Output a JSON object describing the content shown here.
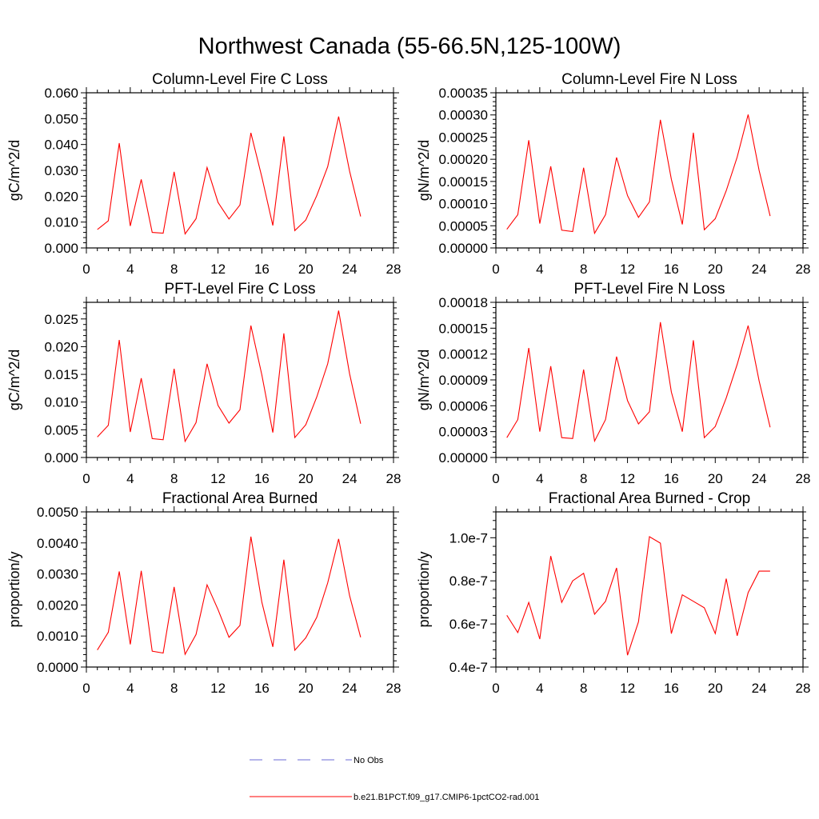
{
  "figure": {
    "title": "Northwest Canada (55-66.5N,125-100W)",
    "series_color": "#ff0000",
    "obs_color": "#6b6bd6"
  },
  "legend": {
    "obs_label": "No Obs",
    "model_label": "b.e21.B1PCT.f09_g17.CMIP6-1pctCO2-rad.001"
  },
  "chart_data": [
    {
      "type": "line",
      "title": "Column-Level Fire C Loss",
      "ylabel": "gC/m^2/d",
      "xlim": [
        0,
        28
      ],
      "xticks": [
        0,
        4,
        8,
        12,
        16,
        20,
        24,
        28
      ],
      "ylim": [
        0,
        0.06
      ],
      "yticks": [
        0,
        0.01,
        0.02,
        0.03,
        0.04,
        0.05,
        0.06
      ],
      "yticklabels": [
        "0.000",
        "0.010",
        "0.020",
        "0.030",
        "0.040",
        "0.050",
        "0.060"
      ],
      "x": [
        1,
        2,
        3,
        4,
        5,
        6,
        7,
        8,
        9,
        10,
        11,
        12,
        13,
        14,
        15,
        16,
        17,
        18,
        19,
        20,
        21,
        22,
        23,
        24,
        25
      ],
      "series": [
        {
          "values": [
            0.0071,
            0.0105,
            0.0405,
            0.0085,
            0.0265,
            0.006,
            0.0057,
            0.0294,
            0.0054,
            0.0113,
            0.0311,
            0.0176,
            0.0112,
            0.0166,
            0.0445,
            0.0274,
            0.0087,
            0.0431,
            0.0067,
            0.0108,
            0.0202,
            0.0314,
            0.0508,
            0.0297,
            0.0122
          ]
        }
      ]
    },
    {
      "type": "line",
      "title": "Column-Level Fire N Loss",
      "ylabel": "gN/m^2/d",
      "xlim": [
        0,
        28
      ],
      "xticks": [
        0,
        4,
        8,
        12,
        16,
        20,
        24,
        28
      ],
      "ylim": [
        0,
        0.00035
      ],
      "yticks": [
        0,
        5e-05,
        0.0001,
        0.00015,
        0.0002,
        0.00025,
        0.0003,
        0.00035
      ],
      "yticklabels": [
        "0.00000",
        "0.00005",
        "0.00010",
        "0.00015",
        "0.00020",
        "0.00025",
        "0.00030",
        "0.00035"
      ],
      "x": [
        1,
        2,
        3,
        4,
        5,
        6,
        7,
        8,
        9,
        10,
        11,
        12,
        13,
        14,
        15,
        16,
        17,
        18,
        19,
        20,
        21,
        22,
        23,
        24,
        25
      ],
      "series": [
        {
          "values": [
            4.2e-05,
            7.5e-05,
            0.000243,
            5.5e-05,
            0.000184,
            4e-05,
            3.7e-05,
            0.000181,
            3.3e-05,
            7.5e-05,
            0.000204,
            0.000118,
            6.9e-05,
            0.000104,
            0.000289,
            0.000155,
            5.3e-05,
            0.00026,
            4.1e-05,
            6.6e-05,
            0.000129,
            0.000205,
            0.000301,
            0.000175,
            7.2e-05
          ]
        }
      ]
    },
    {
      "type": "line",
      "title": "PFT-Level Fire C Loss",
      "ylabel": "gC/m^2/d",
      "xlim": [
        0,
        28
      ],
      "xticks": [
        0,
        4,
        8,
        12,
        16,
        20,
        24,
        28
      ],
      "ylim": [
        0,
        0.028
      ],
      "yticks": [
        0,
        0.005,
        0.01,
        0.015,
        0.02,
        0.025
      ],
      "yticklabels": [
        "0.000",
        "0.005",
        "0.010",
        "0.015",
        "0.020",
        "0.025"
      ],
      "x": [
        1,
        2,
        3,
        4,
        5,
        6,
        7,
        8,
        9,
        10,
        11,
        12,
        13,
        14,
        15,
        16,
        17,
        18,
        19,
        20,
        21,
        22,
        23,
        24,
        25
      ],
      "series": [
        {
          "values": [
            0.0037,
            0.0058,
            0.0212,
            0.0046,
            0.0143,
            0.0034,
            0.0032,
            0.016,
            0.0029,
            0.0063,
            0.0169,
            0.0094,
            0.0062,
            0.0086,
            0.0238,
            0.0149,
            0.0045,
            0.0224,
            0.0036,
            0.0059,
            0.0109,
            0.0169,
            0.0265,
            0.0151,
            0.0061
          ]
        }
      ]
    },
    {
      "type": "line",
      "title": "PFT-Level Fire N Loss",
      "ylabel": "gN/m^2/d",
      "xlim": [
        0,
        28
      ],
      "xticks": [
        0,
        4,
        8,
        12,
        16,
        20,
        24,
        28
      ],
      "ylim": [
        0,
        0.00018
      ],
      "yticks": [
        0,
        3e-05,
        6e-05,
        9e-05,
        0.00012,
        0.00015,
        0.00018
      ],
      "yticklabels": [
        "0.00000",
        "0.00003",
        "0.00006",
        "0.00009",
        "0.00012",
        "0.00015",
        "0.00018"
      ],
      "x": [
        1,
        2,
        3,
        4,
        5,
        6,
        7,
        8,
        9,
        10,
        11,
        12,
        13,
        14,
        15,
        16,
        17,
        18,
        19,
        20,
        21,
        22,
        23,
        24,
        25
      ],
      "series": [
        {
          "values": [
            2.3e-05,
            4.4e-05,
            0.000127,
            3e-05,
            0.000106,
            2.3e-05,
            2.2e-05,
            0.000102,
            1.9e-05,
            4.4e-05,
            0.000117,
            6.6e-05,
            3.9e-05,
            5.3e-05,
            0.000157,
            7.6e-05,
            3e-05,
            0.000136,
            2.3e-05,
            3.6e-05,
            6.9e-05,
            0.000108,
            0.000153,
            8.9e-05,
            3.5e-05
          ]
        }
      ]
    },
    {
      "type": "line",
      "title": "Fractional Area Burned",
      "ylabel": "proportion/y",
      "xlim": [
        0,
        28
      ],
      "xticks": [
        0,
        4,
        8,
        12,
        16,
        20,
        24,
        28
      ],
      "ylim": [
        0,
        0.005
      ],
      "yticks": [
        0,
        0.001,
        0.002,
        0.003,
        0.004,
        0.005
      ],
      "yticklabels": [
        "0.0000",
        "0.0010",
        "0.0020",
        "0.0030",
        "0.0040",
        "0.0050"
      ],
      "x": [
        1,
        2,
        3,
        4,
        5,
        6,
        7,
        8,
        9,
        10,
        11,
        12,
        13,
        14,
        15,
        16,
        17,
        18,
        19,
        20,
        21,
        22,
        23,
        24,
        25
      ],
      "series": [
        {
          "values": [
            0.00055,
            0.00112,
            0.00308,
            0.00073,
            0.0031,
            0.00051,
            0.00045,
            0.00258,
            0.00041,
            0.00105,
            0.00265,
            0.00185,
            0.00096,
            0.00134,
            0.0042,
            0.00209,
            0.00065,
            0.00346,
            0.00054,
            0.00094,
            0.0016,
            0.00271,
            0.00413,
            0.0023,
            0.00096
          ]
        }
      ]
    },
    {
      "type": "line",
      "title": "Fractional Area Burned - Crop",
      "ylabel": "proportion/y",
      "xlim": [
        0,
        28
      ],
      "xticks": [
        0,
        4,
        8,
        12,
        16,
        20,
        24,
        28
      ],
      "ylim": [
        4e-08,
        1.12e-07
      ],
      "yticks": [
        4e-08,
        6e-08,
        8e-08,
        1e-07
      ],
      "yticklabels": [
        "0.4e-7",
        "0.6e-7",
        "0.8e-7",
        "1.0e-7"
      ],
      "x": [
        1,
        2,
        3,
        4,
        5,
        6,
        7,
        8,
        9,
        10,
        11,
        12,
        13,
        14,
        15,
        16,
        17,
        18,
        19,
        20,
        21,
        22,
        23,
        24,
        25
      ],
      "series": [
        {
          "values": [
            6.4e-08,
            5.6e-08,
            7e-08,
            5.3e-08,
            9.15e-08,
            7e-08,
            8e-08,
            8.35e-08,
            6.45e-08,
            7.05e-08,
            8.6e-08,
            4.55e-08,
            6.1e-08,
            1.005e-07,
            9.75e-08,
            5.55e-08,
            7.35e-08,
            7.05e-08,
            6.75e-08,
            5.55e-08,
            8.1e-08,
            5.45e-08,
            7.45e-08,
            8.45e-08,
            8.45e-08
          ]
        }
      ]
    }
  ]
}
